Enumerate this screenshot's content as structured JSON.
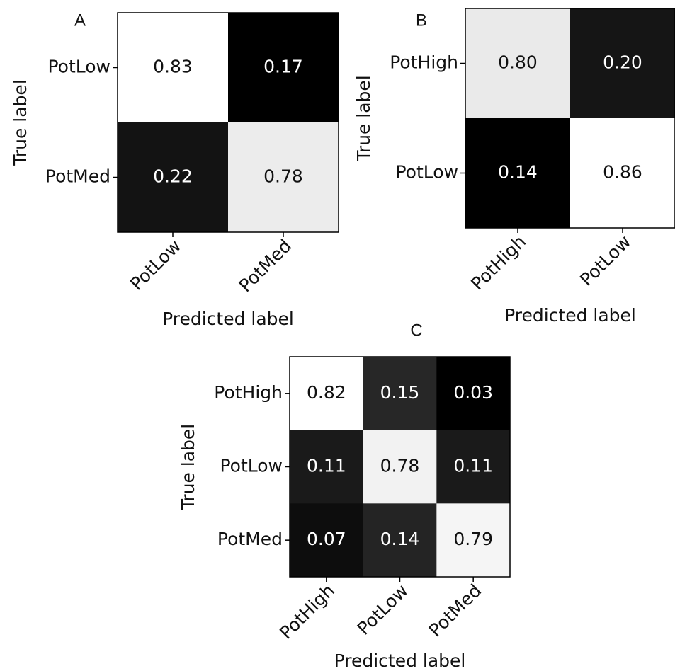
{
  "chart_data": [
    {
      "type": "heatmap",
      "title": "A",
      "x_label": "Predicted label",
      "y_label": "True label",
      "x_categories": [
        "PotLow",
        "PotMed"
      ],
      "y_categories": [
        "PotLow",
        "PotMed"
      ],
      "values": [
        [
          0.83,
          0.17
        ],
        [
          0.22,
          0.78
        ]
      ],
      "colormap": "gray"
    },
    {
      "type": "heatmap",
      "title": "B",
      "x_label": "Predicted label",
      "y_label": "True label",
      "x_categories": [
        "PotHigh",
        "PotLow"
      ],
      "y_categories": [
        "PotHigh",
        "PotLow"
      ],
      "values": [
        [
          0.8,
          0.2
        ],
        [
          0.14,
          0.86
        ]
      ],
      "value_labels": [
        [
          "0.80",
          "0.20"
        ],
        [
          "0.14",
          "0.86"
        ]
      ],
      "colormap": "gray"
    },
    {
      "type": "heatmap",
      "title": "C",
      "x_label": "Predicted label",
      "y_label": "True label",
      "x_categories": [
        "PotHigh",
        "PotLow",
        "PotMed"
      ],
      "y_categories": [
        "PotHigh",
        "PotLow",
        "PotMed"
      ],
      "values": [
        [
          0.82,
          0.15,
          0.03
        ],
        [
          0.11,
          0.78,
          0.11
        ],
        [
          0.07,
          0.14,
          0.79
        ]
      ],
      "colormap": "gray"
    }
  ]
}
